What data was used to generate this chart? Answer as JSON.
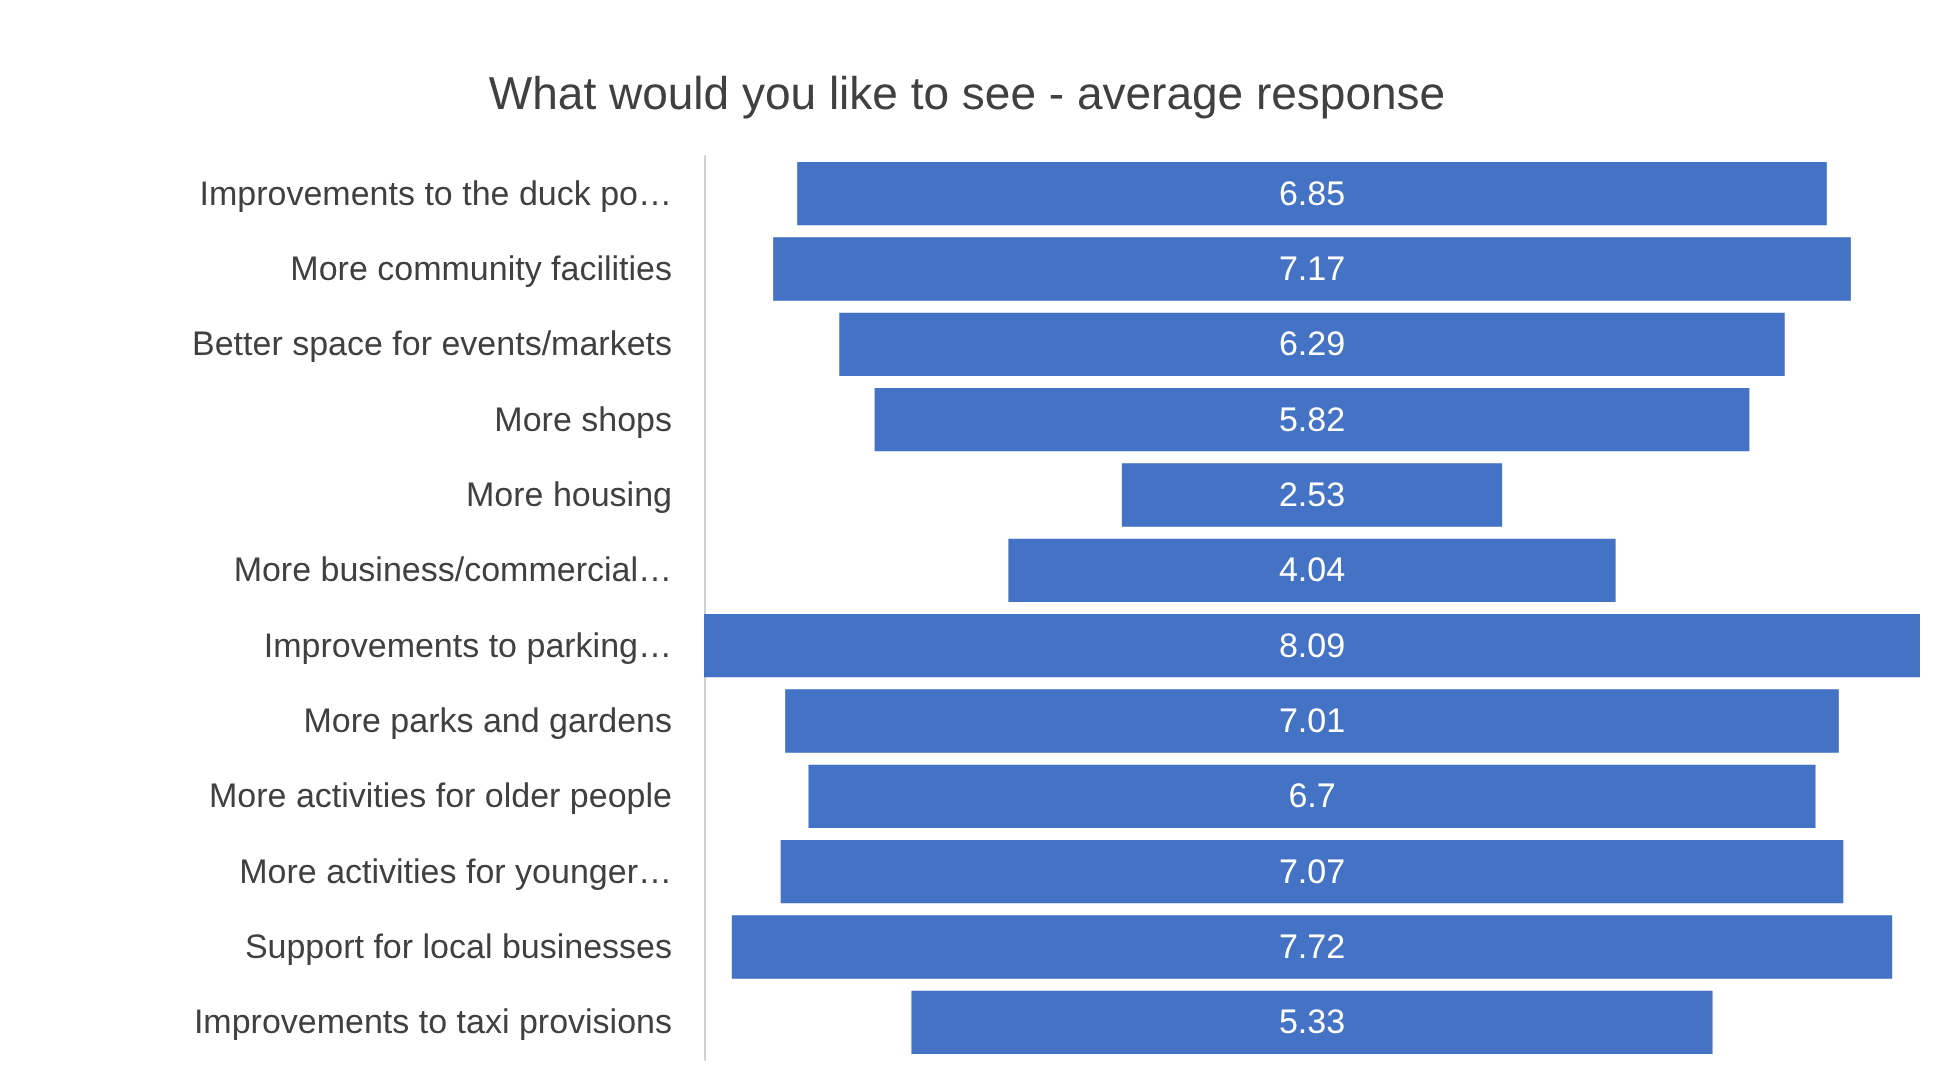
{
  "chart_data": {
    "type": "other",
    "title": "What would you like to see - average response",
    "categories": [
      "Improvements to the duck po…",
      "More community facilities",
      "Better space for events/markets",
      "More shops",
      "More housing",
      "More business/commercial…",
      "Improvements to parking…",
      "More parks and gardens",
      "More activities for older people",
      "More activities for younger…",
      "Support for local businesses",
      "Improvements to taxi provisions"
    ],
    "values": [
      6.85,
      7.17,
      6.29,
      5.82,
      2.53,
      4.04,
      8.09,
      7.01,
      6.7,
      7.07,
      7.72,
      5.33
    ],
    "color": "#4472c4",
    "data_labels": true
  }
}
